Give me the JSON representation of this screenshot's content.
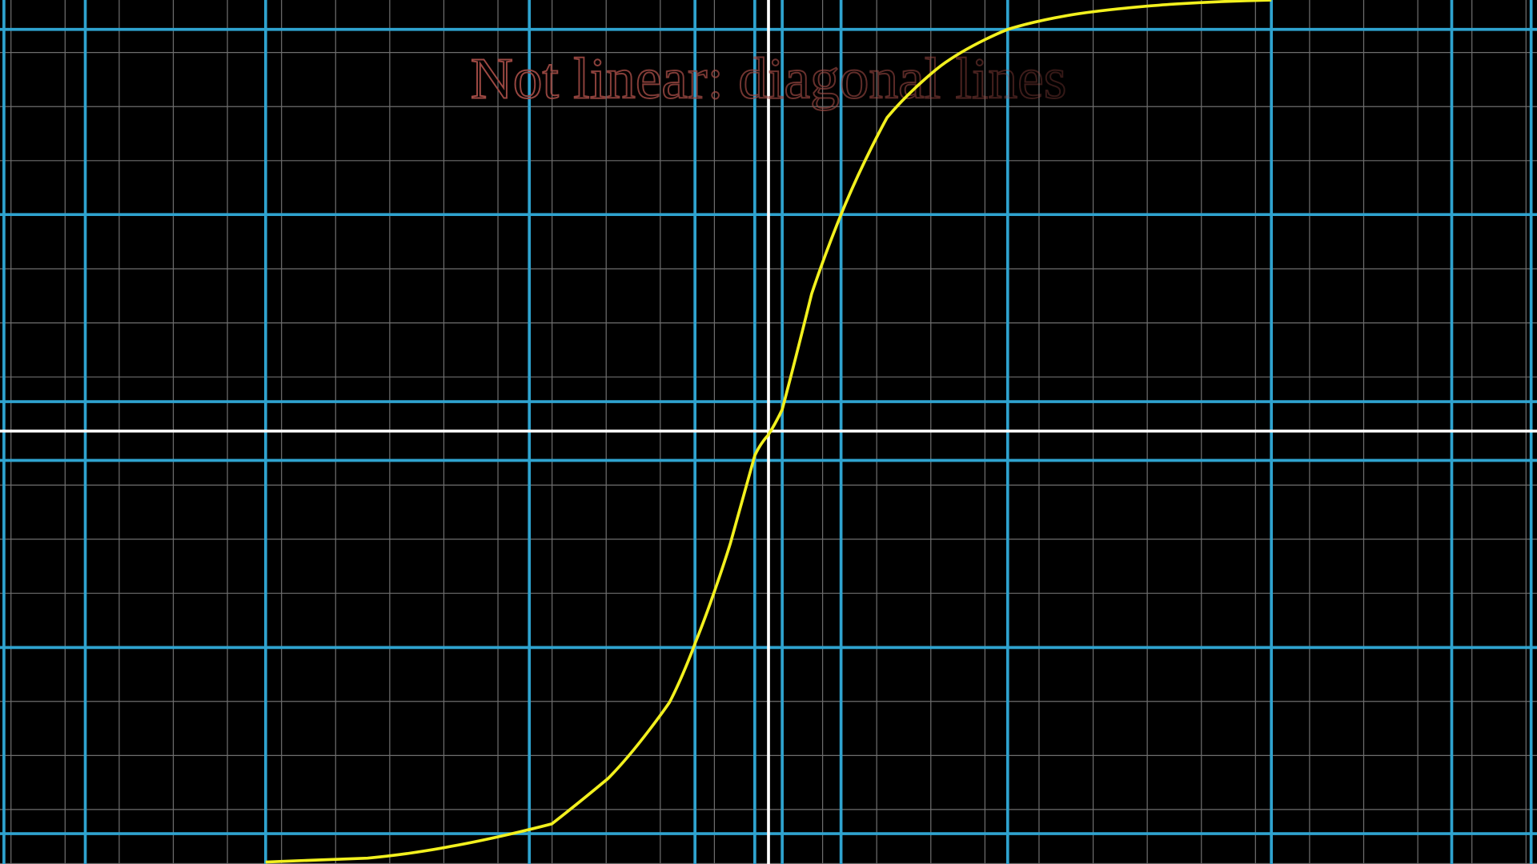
{
  "title": "Not linear: diagonal lines"
}
